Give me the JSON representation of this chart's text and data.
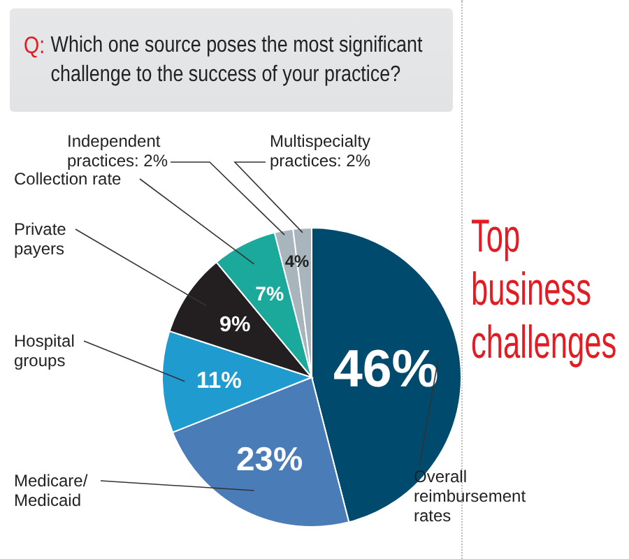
{
  "chart_data": {
    "type": "pie",
    "title": "Q: Which one source poses the most significant challenge to the success of your practice?",
    "subtitle": "Top business challenges",
    "categories": [
      "Overall reimbursement rates",
      "Medicare/Medicaid",
      "Hospital groups",
      "Private payers",
      "Collection rate",
      "Independent practices",
      "Multispecialty practices"
    ],
    "values": [
      46,
      23,
      11,
      9,
      7,
      2,
      2
    ],
    "colors": [
      "#004a6e",
      "#4a7db8",
      "#1f9bd0",
      "#231f20",
      "#1aa99a",
      "#a9b5bd",
      "#a9b5bd"
    ],
    "value_labels": [
      "46%",
      "23%",
      "11%",
      "9%",
      "7%",
      "2%",
      "2%"
    ],
    "annotations": [
      "4%"
    ],
    "legend": false
  }
}
